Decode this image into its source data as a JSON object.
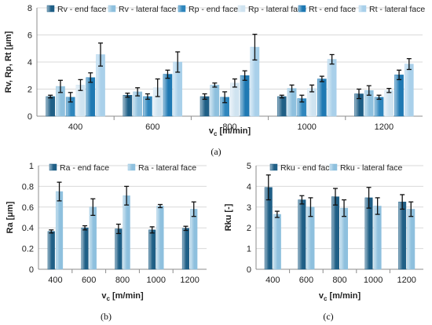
{
  "colors": {
    "end_dark": "#1f5f86",
    "lat_dark": "#8ec0de",
    "end_mid": "#2f86bd",
    "lat_mid": "#cfe3f0",
    "end_tt": "#1f79b3",
    "lat_tt": "#a9d0ea",
    "grid": "#d9d9d9",
    "axis": "#8c8c8c"
  },
  "chart_data": [
    {
      "type": "bar",
      "caption": "(a)",
      "xlabel_main": "v",
      "xlabel_sub": "c",
      "xlabel_unit": " [m/min]",
      "ylabel": "Rv, Rp, Rt [μm]",
      "ylim": [
        0,
        8
      ],
      "yticks": [
        "0",
        "2",
        "4",
        "6",
        "8"
      ],
      "grid": true,
      "legend_position": "top",
      "categories": [
        "400",
        "600",
        "800",
        "1000",
        "1200"
      ],
      "series": [
        {
          "name": "Rv - end face",
          "color_key": "end_dark",
          "values": [
            1.45,
            1.55,
            1.45,
            1.45,
            1.65
          ],
          "errors": [
            0.1,
            0.15,
            0.2,
            0.1,
            0.35
          ]
        },
        {
          "name": "Rv - lateral face",
          "color_key": "lat_dark",
          "values": [
            2.2,
            1.8,
            2.3,
            2.05,
            1.9
          ],
          "errors": [
            0.45,
            0.3,
            0.15,
            0.25,
            0.35
          ]
        },
        {
          "name": "Rp - end face",
          "color_key": "end_mid",
          "values": [
            1.4,
            1.45,
            1.4,
            1.3,
            1.4
          ],
          "errors": [
            0.35,
            0.2,
            0.4,
            0.25,
            0.15
          ]
        },
        {
          "name": "Rp - lateral face",
          "color_key": "lat_mid",
          "values": [
            2.3,
            2.1,
            2.45,
            2.05,
            1.9
          ],
          "errors": [
            0.4,
            0.65,
            0.3,
            0.25,
            0.15
          ]
        },
        {
          "name": "Rt - end face",
          "color_key": "end_tt",
          "values": [
            2.85,
            3.1,
            3.0,
            2.75,
            3.05
          ],
          "errors": [
            0.35,
            0.3,
            0.35,
            0.2,
            0.35
          ]
        },
        {
          "name": "Rt - lateral face",
          "color_key": "lat_tt",
          "values": [
            4.55,
            4.0,
            5.1,
            4.2,
            3.85
          ],
          "errors": [
            0.85,
            0.75,
            0.95,
            0.35,
            0.4
          ]
        }
      ]
    },
    {
      "type": "bar",
      "caption": "(b)",
      "xlabel_main": "v",
      "xlabel_sub": "c",
      "xlabel_unit": " [m/min]",
      "ylabel": "Ra [μm]",
      "ylim": [
        0,
        1
      ],
      "yticks": [
        "0",
        "0.2",
        "0.4",
        "0.6",
        "0.8",
        "1"
      ],
      "grid": true,
      "legend_position": "top",
      "categories": [
        "400",
        "600",
        "800",
        "1000",
        "1200"
      ],
      "series": [
        {
          "name": "Ra - end face",
          "color_key": "end_dark",
          "values": [
            0.365,
            0.4,
            0.39,
            0.38,
            0.395
          ],
          "errors": [
            0.015,
            0.02,
            0.045,
            0.03,
            0.02
          ]
        },
        {
          "name": "Ra - lateral face",
          "color_key": "lat_dark",
          "values": [
            0.75,
            0.6,
            0.71,
            0.61,
            0.58
          ],
          "errors": [
            0.09,
            0.08,
            0.09,
            0.015,
            0.07
          ]
        }
      ]
    },
    {
      "type": "bar",
      "caption": "(c)",
      "xlabel_main": "v",
      "xlabel_sub": "c",
      "xlabel_unit": " [m/min]",
      "ylabel": "Rku [-]",
      "ylim": [
        0,
        5
      ],
      "yticks": [
        "0",
        "1",
        "2",
        "3",
        "4",
        "5"
      ],
      "grid": true,
      "legend_position": "top",
      "categories": [
        "400",
        "600",
        "800",
        "1000",
        "1200"
      ],
      "series": [
        {
          "name": "Rku - end face",
          "color_key": "end_dark",
          "values": [
            3.95,
            3.35,
            3.5,
            3.45,
            3.25
          ],
          "errors": [
            0.6,
            0.2,
            0.4,
            0.5,
            0.35
          ]
        },
        {
          "name": "Rku - lateral face",
          "color_key": "lat_dark",
          "values": [
            2.65,
            3.0,
            2.95,
            3.05,
            2.9
          ],
          "errors": [
            0.15,
            0.45,
            0.4,
            0.4,
            0.35
          ]
        }
      ]
    }
  ]
}
